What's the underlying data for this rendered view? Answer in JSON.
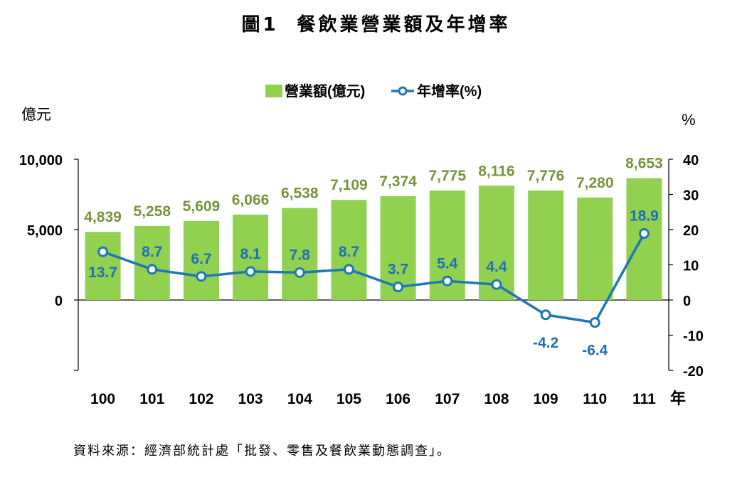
{
  "title": {
    "figure_no": "圖1",
    "text": "餐飲業營業額及年增率"
  },
  "source_note": "資料來源：經濟部統計處「批發、零售及餐飲業動態調查」。",
  "colors": {
    "bar": "#92d050",
    "bar_label": "#77933c",
    "line": "#1f77b4",
    "line_label": "#1f6fb4"
  },
  "chart_data": {
    "type": "bar+line",
    "categories": [
      "100",
      "101",
      "102",
      "103",
      "104",
      "105",
      "106",
      "107",
      "108",
      "109",
      "110",
      "111"
    ],
    "x_unit": "年",
    "series": [
      {
        "name": "營業額(億元)",
        "type": "bar",
        "axis": "left",
        "values": [
          4839,
          5258,
          5609,
          6066,
          6538,
          7109,
          7374,
          7775,
          8116,
          7776,
          7280,
          8653
        ],
        "labels": [
          "4,839",
          "5,258",
          "5,609",
          "6,066",
          "6,538",
          "7,109",
          "7,374",
          "7,775",
          "8,116",
          "7,776",
          "7,280",
          "8,653"
        ]
      },
      {
        "name": "年增率(%)",
        "type": "line",
        "axis": "right",
        "values": [
          13.7,
          8.7,
          6.7,
          8.1,
          7.8,
          8.7,
          3.7,
          5.4,
          4.4,
          -4.2,
          -6.4,
          18.9
        ],
        "labels": [
          "13.7",
          "8.7",
          "6.7",
          "8.1",
          "7.8",
          "8.7",
          "3.7",
          "5.4",
          "4.4",
          "-4.2",
          "-6.4",
          "18.9"
        ]
      }
    ],
    "left_axis": {
      "label": "億元",
      "ylim": [
        -5000,
        10000
      ],
      "ticks": [
        0,
        5000,
        10000
      ],
      "tick_labels": [
        "0",
        "5,000",
        "10,000"
      ]
    },
    "right_axis": {
      "label": "%",
      "ylim": [
        -20,
        40
      ],
      "ticks": [
        -20,
        -10,
        0,
        10,
        20,
        30,
        40
      ],
      "tick_labels": [
        "-20",
        "-10",
        "0",
        "10",
        "20",
        "30",
        "40"
      ]
    },
    "legend": {
      "position": "top",
      "entries": [
        "營業額(億元)",
        "年增率(%)"
      ]
    }
  }
}
